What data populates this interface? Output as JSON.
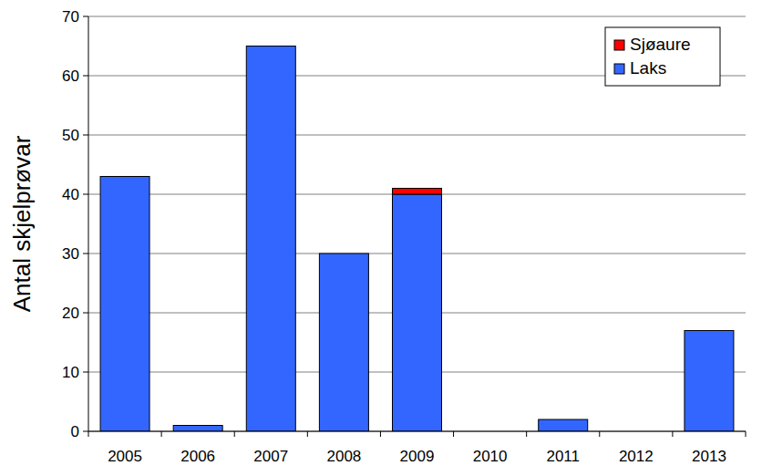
{
  "chart_data": {
    "type": "bar",
    "y_label": "Antal skjelprøvar",
    "categories": [
      "2005",
      "2006",
      "2007",
      "2008",
      "2009",
      "2010",
      "2011",
      "2012",
      "2013"
    ],
    "series": [
      {
        "name": "Laks",
        "color": "#3366ff",
        "values": [
          43,
          1,
          65,
          30,
          40,
          0,
          2,
          0,
          17
        ]
      },
      {
        "name": "Sjøaure",
        "color": "#ff0000",
        "values": [
          0,
          0,
          0,
          0,
          1,
          0,
          0,
          0,
          0
        ]
      }
    ],
    "stacked": true,
    "legend": "top-right",
    "grid": true,
    "ylim": [
      0,
      70
    ],
    "yticks": [
      0,
      10,
      20,
      30,
      40,
      50,
      60,
      70
    ]
  }
}
